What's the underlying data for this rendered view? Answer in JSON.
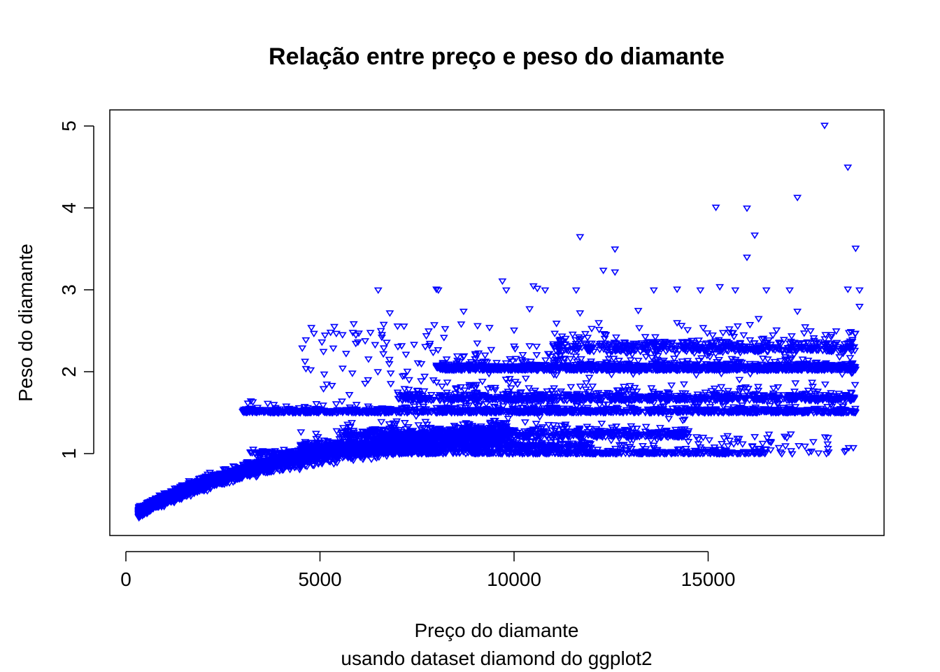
{
  "chart_data": {
    "type": "scatter",
    "title": "Relação entre preço e peso do diamante",
    "xlabel": "Preço do diamante",
    "subtitle": "usando dataset diamond do ggplot2",
    "ylabel": "Peso do diamante",
    "xlim": [
      0,
      19000
    ],
    "ylim": [
      0.2,
      5.01
    ],
    "x_ticks": [
      0,
      5000,
      10000,
      15000
    ],
    "x_tick_labels": [
      "0",
      "5000",
      "10000",
      "15000"
    ],
    "y_ticks": [
      1,
      2,
      3,
      4,
      5
    ],
    "y_tick_labels": [
      "1",
      "2",
      "3",
      "4",
      "5"
    ],
    "marker": "triangle-down-open",
    "color": "#0000ff",
    "grid": false,
    "legend": "none",
    "points": [
      [
        18000,
        5.01
      ],
      [
        18600,
        4.5
      ],
      [
        15200,
        4.01
      ],
      [
        16000,
        4.0
      ],
      [
        17300,
        4.13
      ],
      [
        11700,
        3.65
      ],
      [
        16200,
        3.67
      ],
      [
        12600,
        3.5
      ],
      [
        18800,
        3.51
      ],
      [
        16000,
        3.4
      ],
      [
        12300,
        3.24
      ],
      [
        12600,
        3.22
      ],
      [
        9700,
        3.11
      ],
      [
        10500,
        3.05
      ],
      [
        15300,
        3.04
      ],
      [
        6500,
        3.0
      ],
      [
        8000,
        3.01
      ],
      [
        8050,
        3.0
      ],
      [
        9800,
        3.0
      ],
      [
        10600,
        3.02
      ],
      [
        10800,
        3.0
      ],
      [
        11600,
        3.0
      ],
      [
        13600,
        3.0
      ],
      [
        14200,
        3.01
      ],
      [
        14800,
        3.0
      ],
      [
        15700,
        3.0
      ],
      [
        16500,
        3.0
      ],
      [
        17100,
        3.0
      ],
      [
        18600,
        3.01
      ],
      [
        18900,
        3.0
      ],
      [
        6800,
        2.72
      ],
      [
        8700,
        2.74
      ],
      [
        10400,
        2.77
      ],
      [
        11700,
        2.72
      ],
      [
        13200,
        2.75
      ],
      [
        17300,
        2.74
      ],
      [
        18900,
        2.8
      ],
      [
        6300,
        2.48
      ],
      [
        7800,
        2.5
      ],
      [
        10000,
        2.51
      ],
      [
        12000,
        2.53
      ],
      [
        14200,
        2.6
      ],
      [
        16300,
        2.65
      ],
      [
        17500,
        2.55
      ],
      [
        18300,
        2.5
      ]
    ]
  }
}
